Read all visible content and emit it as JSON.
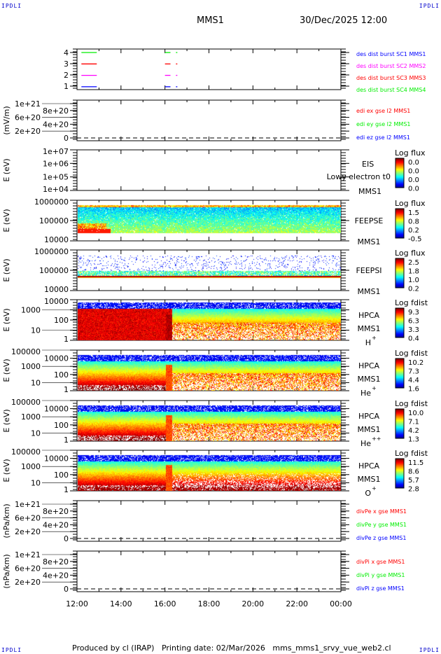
{
  "corners": {
    "tl": "IPDLI",
    "tr": "IPDLI",
    "bl": "IPDLI",
    "br": "IPDLI"
  },
  "header": {
    "mission": "MMS1",
    "datetime": "30/Dec/2025 12:00"
  },
  "footer": "Produced by cl (IRAP)   Printing date: 02/Mar/2026   mms_mms1_srvy_vue_web2.cl",
  "colors": {
    "blue": "#0000ff",
    "magenta": "#ff00ff",
    "red": "#ff0000",
    "green": "#00ee00"
  },
  "chart_data": {
    "type": "multi-panel time series / spectrogram",
    "x_ticks": [
      "12:00",
      "14:00",
      "16:00",
      "18:00",
      "20:00",
      "22:00",
      "00:00"
    ],
    "panels": [
      {
        "id": "burst",
        "type": "line",
        "ylabel": "",
        "yticks": [
          "1",
          "2",
          "3",
          "4"
        ],
        "legend": [
          {
            "text": "des dist burst SC1 MMS1",
            "color": "#0000ff"
          },
          {
            "text": "des dist burst SC2 MMS2",
            "color": "#ff00ff"
          },
          {
            "text": "des dist burst SC3 MMS3",
            "color": "#ff0000"
          },
          {
            "text": "des dist burst SC4 MMS4",
            "color": "#00ee00"
          }
        ],
        "segments_hours": [
          [
            12.2,
            12.9
          ],
          [
            16.0,
            16.25
          ],
          [
            16.5,
            16.53
          ]
        ]
      },
      {
        "id": "edi",
        "type": "line",
        "ylabel": "(mV/m)",
        "yticks": [
          "0",
          "2e+20",
          "4e+20",
          "6e+20",
          "8e+20",
          "1e+21"
        ],
        "legend": [
          {
            "text": "edi ex gse l2 MMS1",
            "color": "#ff0000"
          },
          {
            "text": "edi ey gse l2 MMS1",
            "color": "#00ee00"
          },
          {
            "text": "edi ez gse l2 MMS1",
            "color": "#0000ff"
          }
        ]
      },
      {
        "id": "eis",
        "type": "heatmap",
        "ylabel": "E (eV)",
        "yticks": [
          "1e+04",
          "1e+05",
          "1e+06",
          "1e+07"
        ],
        "labels": [
          "EIS",
          "Lowy electron t0",
          "MMS1"
        ],
        "colorbar_title": "Log flux",
        "colorbar_ticks": [
          "0.0",
          "0.0",
          "0.0",
          "0.0"
        ]
      },
      {
        "id": "feepse",
        "type": "heatmap",
        "ylabel": "E (eV)",
        "yticks": [
          "10000",
          "100000",
          "1000000"
        ],
        "labels": [
          "FEEPSE",
          "MMS1"
        ],
        "colorbar_title": "Log flux",
        "colorbar_ticks": [
          "1.5",
          "0.8",
          "0.2",
          "-0.5"
        ]
      },
      {
        "id": "feepsi",
        "type": "heatmap",
        "ylabel": "E (eV)",
        "yticks": [
          "10000",
          "100000",
          "1000000"
        ],
        "labels": [
          "FEEPSI",
          "MMS1"
        ],
        "colorbar_title": "Log flux",
        "colorbar_ticks": [
          "2.5",
          "1.8",
          "1.0",
          "0.2"
        ]
      },
      {
        "id": "hpca_h",
        "type": "heatmap",
        "ylabel": "E (eV)",
        "yticks": [
          "1",
          "10",
          "100",
          "1000",
          "10000"
        ],
        "labels": [
          "HPCA",
          "MMS1"
        ],
        "species": "H",
        "charge": "+",
        "colorbar_title": "Log fdist",
        "colorbar_ticks": [
          "9.3",
          "6.3",
          "3.3",
          "0.4"
        ]
      },
      {
        "id": "hpca_he1",
        "type": "heatmap",
        "ylabel": "E (eV)",
        "yticks": [
          "1",
          "10",
          "100",
          "1000",
          "10000",
          "100000"
        ],
        "labels": [
          "HPCA",
          "MMS1"
        ],
        "species": "He",
        "charge": "+",
        "colorbar_title": "Log fdist",
        "colorbar_ticks": [
          "10.2",
          "7.3",
          "4.4",
          "1.6"
        ]
      },
      {
        "id": "hpca_he2",
        "type": "heatmap",
        "ylabel": "E (eV)",
        "yticks": [
          "1",
          "10",
          "100",
          "1000",
          "10000",
          "100000"
        ],
        "labels": [
          "HPCA",
          "MMS1"
        ],
        "species": "He",
        "charge": "++",
        "colorbar_title": "Log fdist",
        "colorbar_ticks": [
          "10.0",
          "7.1",
          "4.2",
          "1.3"
        ]
      },
      {
        "id": "hpca_o",
        "type": "heatmap",
        "ylabel": "E (eV)",
        "yticks": [
          "1",
          "10",
          "100",
          "1000",
          "10000",
          "100000"
        ],
        "labels": [
          "HPCA",
          "MMS1"
        ],
        "species": "O",
        "charge": "+",
        "colorbar_title": "Log fdist",
        "colorbar_ticks": [
          "11.5",
          "8.6",
          "5.7",
          "2.8"
        ]
      },
      {
        "id": "divpe",
        "type": "line",
        "ylabel": "(nPa/km)",
        "yticks": [
          "0",
          "2e+20",
          "4e+20",
          "6e+20",
          "8e+20",
          "1e+21"
        ],
        "legend": [
          {
            "text": "divPe x gse MMS1",
            "color": "#ff0000"
          },
          {
            "text": "divPe y gse MMS1",
            "color": "#00ee00"
          },
          {
            "text": "divPe z gse MMS1",
            "color": "#0000ff"
          }
        ]
      },
      {
        "id": "divpi",
        "type": "line",
        "ylabel": "(nPa/km)",
        "yticks": [
          "0",
          "2e+20",
          "4e+20",
          "6e+20",
          "8e+20",
          "1e+21"
        ],
        "legend": [
          {
            "text": "divPi x gse MMS1",
            "color": "#ff0000"
          },
          {
            "text": "divPi y gse MMS1",
            "color": "#00ee00"
          },
          {
            "text": "divPi z gse MMS1",
            "color": "#0000ff"
          }
        ]
      }
    ]
  }
}
